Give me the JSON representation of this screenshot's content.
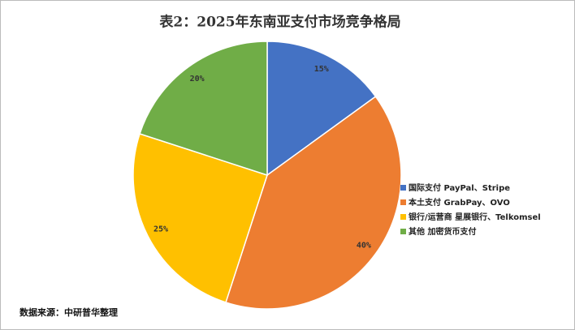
{
  "chart_data": {
    "type": "pie",
    "title": "表2：2025年东南亚支付市场竞争格局",
    "categories": [
      "国际支付 PayPal、Stripe",
      "本土支付 GrabPay、OVO",
      "银行/运营商 星展银行、Telkomsel",
      "其他 加密货币支付"
    ],
    "values": [
      15,
      40,
      25,
      20
    ],
    "value_labels": [
      "15%",
      "40%",
      "25%",
      "20%"
    ],
    "colors": [
      "#4472c4",
      "#ed7d31",
      "#ffc000",
      "#70ad47"
    ],
    "legend": "right",
    "source": "数据来源：中研普华整理"
  }
}
